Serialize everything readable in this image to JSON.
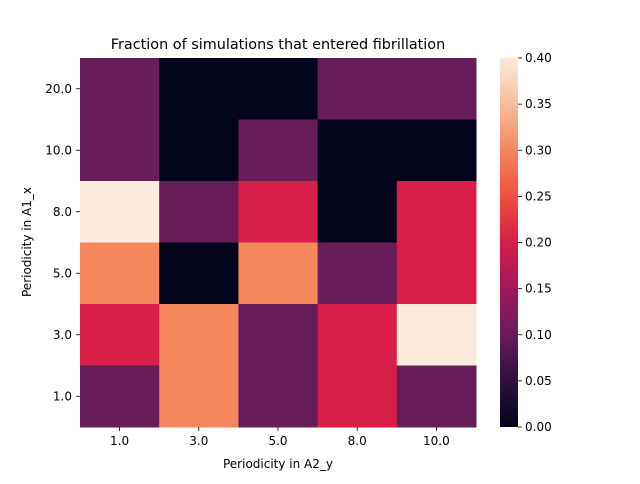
{
  "chart_data": {
    "type": "heatmap",
    "title": "Fraction of simulations that entered fibrillation",
    "xlabel": "Periodicity in A2_y",
    "ylabel": "Periodicity in A1_x",
    "x_categories": [
      "1.0",
      "3.0",
      "5.0",
      "8.0",
      "10.0"
    ],
    "y_categories": [
      "20.0",
      "10.0",
      "8.0",
      "5.0",
      "3.0",
      "1.0"
    ],
    "values": [
      [
        0.1,
        0.0,
        0.0,
        0.1,
        0.1
      ],
      [
        0.1,
        0.0,
        0.1,
        0.0,
        0.0
      ],
      [
        0.4,
        0.1,
        0.2,
        0.0,
        0.2
      ],
      [
        0.3,
        0.0,
        0.3,
        0.1,
        0.2
      ],
      [
        0.2,
        0.3,
        0.1,
        0.2,
        0.4
      ],
      [
        0.1,
        0.3,
        0.1,
        0.2,
        0.1
      ]
    ],
    "colorbar": {
      "range": [
        0.0,
        0.4
      ],
      "ticks": [
        "0.00",
        "0.05",
        "0.10",
        "0.15",
        "0.20",
        "0.25",
        "0.30",
        "0.35",
        "0.40"
      ],
      "colormap": "rocket"
    }
  }
}
